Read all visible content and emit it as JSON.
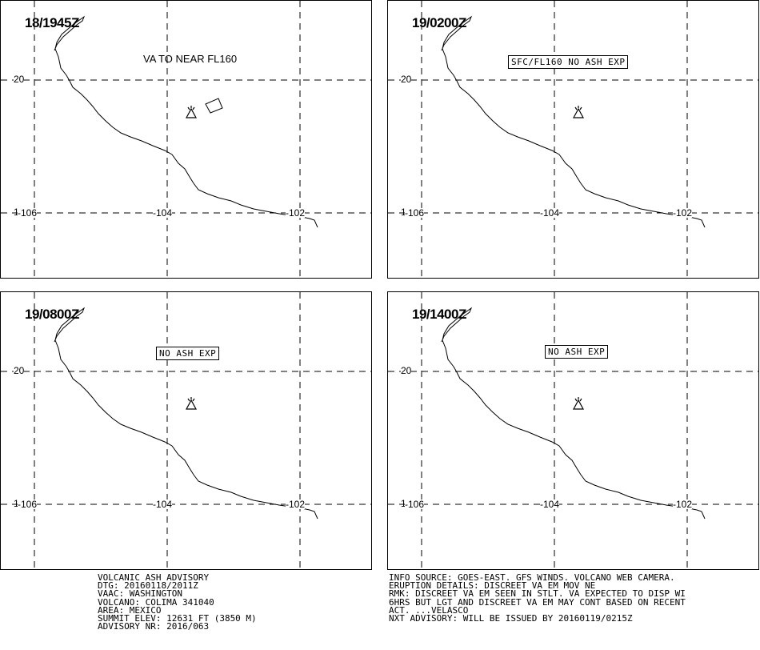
{
  "panels": [
    {
      "time": "18/1945Z",
      "note": "VA TO NEAR FL160",
      "note_style": "plain",
      "ash_polygon": true
    },
    {
      "time": "19/0200Z",
      "note": "SFC/FL160 NO ASH EXP",
      "note_style": "box",
      "ash_polygon": false
    },
    {
      "time": "19/0800Z",
      "note": "NO ASH EXP",
      "note_style": "box",
      "ash_polygon": false
    },
    {
      "time": "19/1400Z",
      "note": "NO ASH EXP",
      "note_style": "box",
      "ash_polygon": false
    }
  ],
  "grid_labels": {
    "lat_20": "20",
    "lat_18": "18",
    "lon_106": "-106",
    "lon_104": "-104",
    "lon_102": "-102"
  },
  "volcano_icon": "volcano-triangle-icon",
  "advisory_left": [
    "VOLCANIC ASH ADVISORY",
    "DTG: 20160118/2011Z",
    "VAAC: WASHINGTON",
    "VOLCANO: COLIMA 341040",
    "AREA: MEXICO",
    "SUMMIT ELEV: 12631 FT (3850 M)",
    "ADVISORY NR: 2016/063"
  ],
  "advisory_right": [
    "INFO SOURCE: GOES-EAST. GFS WINDS. VOLCANO WEB CAMERA.",
    "ERUPTION DETAILS: DISCREET VA EM MOV NE",
    "RMK: DISCREET VA EM SEEN IN STLT. VA EXPECTED TO DISP WI",
    "6HRS BUT LGT AND DISCREET VA EM MAY CONT BASED ON RECENT",
    "ACT. ...VELASCO",
    "NXT ADVISORY: WILL BE ISSUED BY 20160119/0215Z"
  ]
}
